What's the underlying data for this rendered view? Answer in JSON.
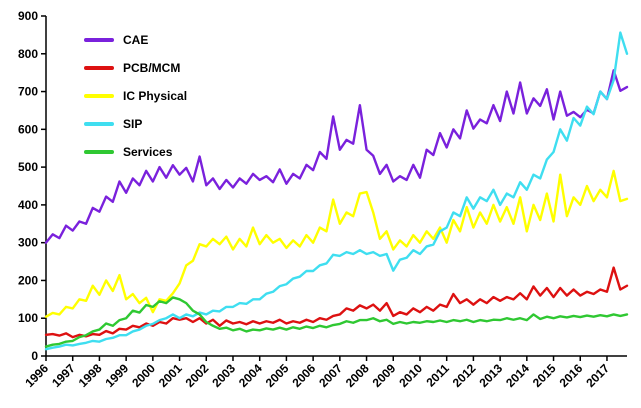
{
  "chart_data": {
    "type": "line",
    "title": "",
    "xlabel": "",
    "ylabel": "",
    "ylim": [
      0,
      900
    ],
    "ytick_step": 100,
    "ytick_labels": [
      "0",
      "100",
      "200",
      "300",
      "400",
      "500",
      "600",
      "700",
      "800",
      "900"
    ],
    "x_tick_labels": [
      "1996",
      "1997",
      "1998",
      "1999",
      "2000",
      "2001",
      "2002",
      "2003",
      "2004",
      "2005",
      "2006",
      "2007",
      "2008",
      "2009",
      "2010",
      "2011",
      "2012",
      "2013",
      "2014",
      "2015",
      "2016",
      "2017"
    ],
    "points_per_year": 4,
    "x_unit": "quarter",
    "grid": false,
    "legend_position": "top-left-inside",
    "axis_color": "#000000",
    "background_color": "#ffffff",
    "series": [
      {
        "name": "CAE",
        "color": "#7a21dc",
        "values": [
          300,
          322,
          312,
          345,
          332,
          356,
          350,
          392,
          382,
          422,
          408,
          462,
          432,
          470,
          452,
          490,
          462,
          500,
          472,
          505,
          480,
          498,
          462,
          528,
          452,
          470,
          442,
          466,
          446,
          470,
          456,
          482,
          466,
          476,
          460,
          494,
          456,
          482,
          470,
          506,
          492,
          540,
          522,
          634,
          546,
          572,
          562,
          664,
          546,
          530,
          482,
          506,
          462,
          476,
          466,
          506,
          472,
          546,
          532,
          590,
          552,
          600,
          576,
          650,
          602,
          626,
          616,
          664,
          622,
          700,
          642,
          724,
          642,
          682,
          662,
          706,
          626,
          700,
          636,
          646,
          632,
          652,
          642,
          700,
          680,
          756,
          702,
          712
        ]
      },
      {
        "name": "PCB/MCM",
        "color": "#dd1111",
        "values": [
          56,
          58,
          54,
          60,
          50,
          56,
          52,
          58,
          56,
          66,
          60,
          72,
          70,
          80,
          76,
          86,
          80,
          90,
          86,
          100,
          96,
          100,
          90,
          100,
          86,
          96,
          80,
          94,
          86,
          90,
          84,
          92,
          86,
          92,
          88,
          96,
          86,
          92,
          88,
          96,
          90,
          100,
          96,
          106,
          110,
          126,
          120,
          134,
          126,
          136,
          120,
          140,
          106,
          116,
          110,
          126,
          116,
          130,
          120,
          136,
          130,
          164,
          140,
          150,
          136,
          150,
          140,
          156,
          146,
          156,
          150,
          166,
          150,
          184,
          160,
          180,
          156,
          180,
          160,
          176,
          160,
          170,
          164,
          176,
          170,
          234,
          176,
          186
        ]
      },
      {
        "name": "IC Physical",
        "color": "#ffff00",
        "values": [
          104,
          114,
          110,
          130,
          126,
          150,
          146,
          186,
          162,
          200,
          172,
          214,
          150,
          164,
          140,
          154,
          116,
          150,
          146,
          166,
          192,
          240,
          252,
          296,
          290,
          310,
          296,
          316,
          282,
          310,
          290,
          340,
          296,
          320,
          300,
          310,
          286,
          306,
          290,
          320,
          300,
          340,
          330,
          414,
          350,
          380,
          370,
          430,
          434,
          380,
          310,
          330,
          282,
          306,
          290,
          320,
          300,
          330,
          310,
          340,
          300,
          360,
          330,
          394,
          340,
          380,
          350,
          400,
          356,
          394,
          350,
          420,
          330,
          400,
          360,
          430,
          356,
          480,
          370,
          420,
          400,
          450,
          410,
          440,
          420,
          490,
          410,
          416
        ]
      },
      {
        "name": "SIP",
        "color": "#3fdef0",
        "values": [
          18,
          22,
          25,
          30,
          28,
          32,
          35,
          40,
          38,
          45,
          48,
          55,
          55,
          65,
          70,
          80,
          85,
          95,
          100,
          110,
          100,
          110,
          105,
          115,
          110,
          120,
          118,
          130,
          130,
          140,
          138,
          150,
          150,
          165,
          170,
          185,
          190,
          205,
          210,
          225,
          225,
          240,
          245,
          268,
          265,
          275,
          270,
          280,
          270,
          275,
          265,
          270,
          226,
          255,
          260,
          280,
          270,
          290,
          295,
          330,
          340,
          380,
          370,
          420,
          390,
          420,
          410,
          440,
          400,
          430,
          420,
          460,
          440,
          480,
          470,
          520,
          540,
          600,
          570,
          630,
          610,
          660,
          640,
          700,
          680,
          730,
          856,
          800
        ]
      },
      {
        "name": "Services",
        "color": "#2fc832",
        "values": [
          25,
          30,
          32,
          38,
          40,
          50,
          55,
          65,
          70,
          86,
          80,
          95,
          100,
          120,
          115,
          135,
          130,
          145,
          140,
          155,
          150,
          140,
          120,
          110,
          90,
          80,
          72,
          75,
          68,
          72,
          65,
          70,
          68,
          73,
          70,
          75,
          70,
          76,
          72,
          78,
          74,
          80,
          76,
          82,
          85,
          92,
          88,
          95,
          95,
          100,
          92,
          96,
          85,
          90,
          86,
          90,
          88,
          92,
          90,
          94,
          90,
          95,
          92,
          96,
          90,
          95,
          92,
          96,
          95,
          100,
          96,
          100,
          95,
          110,
          98,
          104,
          100,
          105,
          102,
          106,
          103,
          107,
          104,
          108,
          105,
          110,
          106,
          110
        ]
      }
    ]
  }
}
